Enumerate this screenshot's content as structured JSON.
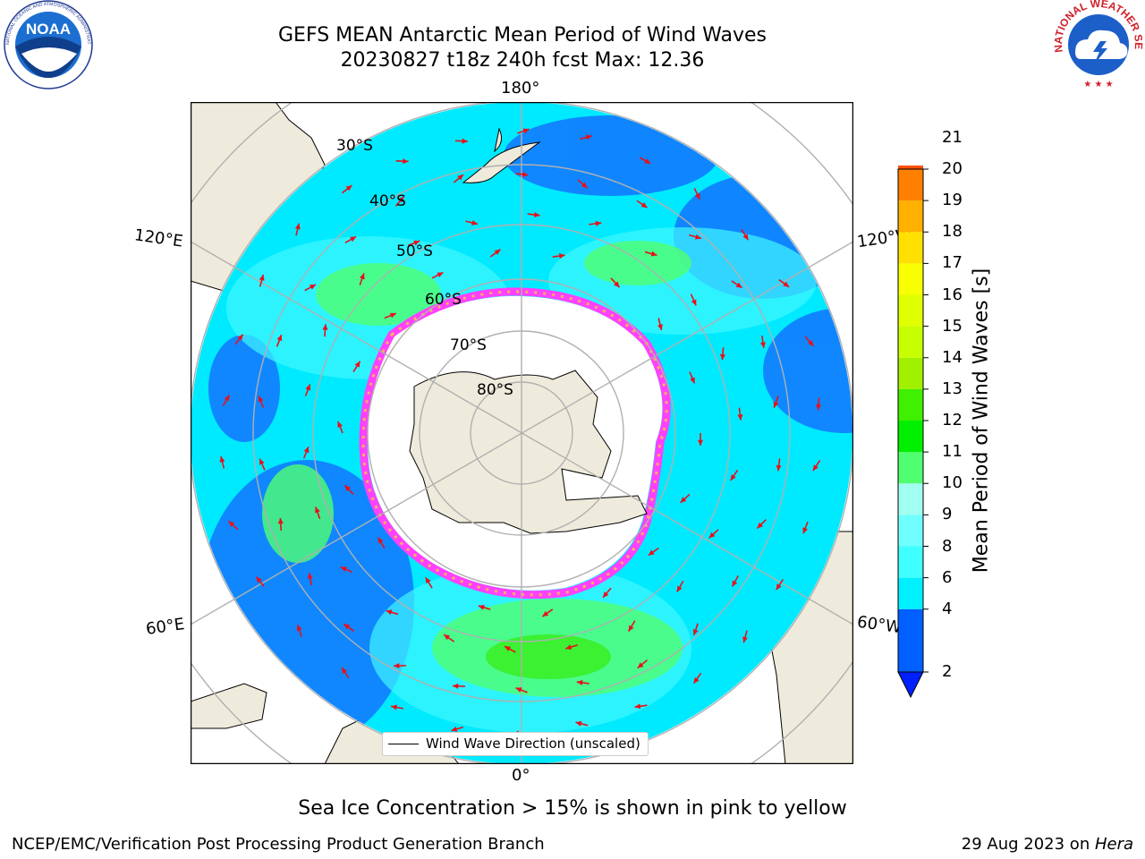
{
  "header": {
    "title_line1": "GEFS MEAN Antarctic Mean Period of Wind Waves",
    "title_line2": "20230827 t18z 240h fcst   Max: 12.36"
  },
  "logos": {
    "left": {
      "name": "NOAA",
      "text": "NOAA",
      "ring_text": "NATIONAL OCEANIC AND ATMOSPHERIC ADMINISTRATION · U.S. DEPARTMENT OF COMMERCE"
    },
    "right": {
      "name": "National Weather Service",
      "ring_text": "NATIONAL WEATHER SERVICE"
    }
  },
  "map": {
    "projection": "south-polar-stereographic",
    "longitude_labels": {
      "top": "180°",
      "bottom": "0°",
      "left_upper": "120°E",
      "left_lower": "60°E",
      "right_upper": "120°W",
      "right_lower": "60°W"
    },
    "latitude_labels": [
      "30°S",
      "40°S",
      "50°S",
      "60°S",
      "70°S",
      "80°S"
    ],
    "legend_label": "Wind Wave Direction (unscaled)",
    "arrow_color": "#e8101a",
    "land_color": "#efebdc",
    "sea_ice_colors": [
      "#ff40ff",
      "#ff8ab0",
      "#ffb060",
      "#ffe040"
    ]
  },
  "colorbar": {
    "label": "Mean Period of Wind Waves [s]",
    "min": 2,
    "max": 21,
    "extend": "min",
    "ticks": [
      "2",
      "4",
      "6",
      "8",
      "9",
      "10",
      "11",
      "12",
      "13",
      "14",
      "15",
      "16",
      "17",
      "18",
      "19",
      "20",
      "21"
    ],
    "colors": [
      "#0060ff",
      "#00f0ff",
      "#40ffff",
      "#70ffff",
      "#a0fff0",
      "#50ff70",
      "#00f000",
      "#40f000",
      "#a0f000",
      "#c8ff00",
      "#e0ff00",
      "#f8ff00",
      "#ffe000",
      "#ffb000",
      "#ff8000",
      "#ff5000",
      "#ff2000",
      "#ff0000"
    ],
    "under_color": "#0020ff"
  },
  "footer": {
    "caption": "Sea Ice Concentration > 15% is shown in pink to yellow",
    "left": "NCEP/EMC/Verification Post Processing Product Generation Branch",
    "right_date": "29 Aug 2023 on ",
    "right_host": "Hera"
  }
}
